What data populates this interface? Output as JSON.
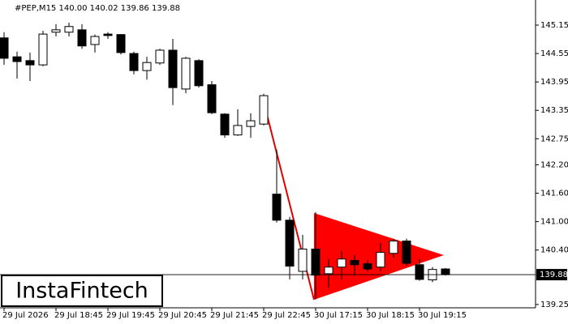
{
  "chart_data": {
    "type": "candlestick",
    "title": "#PEP,M15  140.00 140.02 139.86 139.88",
    "watermark": "InstaFintech",
    "categories": [
      "29 Jul 2026",
      null,
      null,
      null,
      "29 Jul 18:45",
      null,
      null,
      null,
      "29 Jul 19:45",
      null,
      null,
      null,
      "29 Jul 20:45",
      null,
      null,
      null,
      "29 Jul 21:45",
      null,
      null,
      null,
      "29 Jul 22:45",
      null,
      null,
      null,
      "30 Jul 17:15",
      null,
      null,
      null,
      "30 Jul 18:15",
      null,
      null,
      null,
      "30 Jul 19:15",
      null,
      null
    ],
    "open": [
      144.88,
      144.48,
      144.4,
      144.31,
      145.0,
      145.0,
      145.05,
      144.74,
      144.96,
      144.95,
      144.55,
      144.19,
      144.35,
      144.62,
      143.8,
      144.4,
      143.89,
      143.27,
      142.83,
      143.01,
      143.06,
      141.58,
      141.03,
      139.95,
      140.42,
      139.9,
      140.04,
      140.18,
      140.11,
      140.04,
      140.33,
      140.59,
      140.09,
      139.77,
      140.0
    ],
    "high": [
      145.0,
      144.59,
      144.57,
      145.03,
      145.17,
      145.2,
      145.17,
      144.95,
      145.0,
      144.96,
      144.59,
      144.48,
      144.65,
      144.86,
      144.48,
      144.43,
      143.97,
      143.29,
      143.37,
      143.29,
      143.7,
      142.52,
      141.1,
      140.72,
      141.2,
      140.21,
      140.38,
      140.3,
      140.18,
      140.55,
      140.64,
      140.64,
      140.21,
      140.04,
      140.02
    ],
    "low": [
      144.31,
      144.02,
      143.97,
      144.28,
      144.91,
      144.91,
      144.65,
      144.57,
      144.86,
      144.53,
      144.11,
      144.0,
      144.31,
      143.46,
      143.71,
      143.83,
      143.27,
      142.77,
      142.81,
      142.77,
      143.03,
      140.98,
      139.78,
      139.78,
      139.36,
      139.61,
      139.78,
      139.87,
      139.95,
      139.95,
      140.24,
      140.07,
      139.75,
      139.72,
      139.86
    ],
    "close": [
      144.45,
      144.38,
      144.31,
      144.96,
      145.05,
      145.12,
      144.71,
      144.91,
      144.93,
      144.57,
      144.19,
      144.36,
      144.62,
      143.83,
      144.45,
      143.87,
      143.3,
      142.83,
      143.03,
      143.13,
      143.66,
      141.03,
      140.06,
      140.42,
      139.87,
      140.04,
      140.21,
      140.09,
      140.0,
      140.35,
      140.59,
      140.12,
      139.78,
      139.99,
      139.88
    ],
    "last_price": 139.88,
    "ylim": [
      139.18,
      145.68
    ],
    "yticks": [
      145.15,
      144.55,
      143.95,
      143.35,
      142.75,
      {
        "value": 142.2,
        "label": "142.20"
      },
      {
        "value": 141.6,
        "label": "141.60"
      },
      {
        "value": 141.0,
        "label": "141.00"
      },
      {
        "value": 140.4,
        "label": "140.40"
      },
      139.25
    ]
  }
}
